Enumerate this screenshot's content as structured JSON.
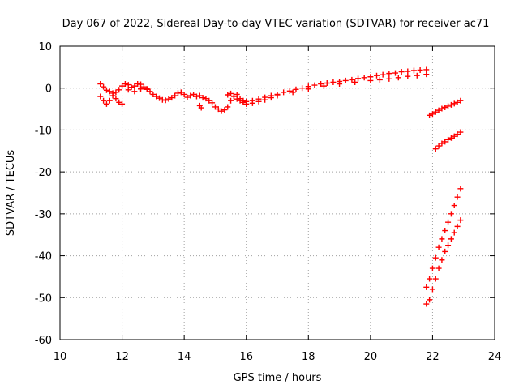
{
  "chart_data": {
    "type": "scatter",
    "title": "Day 067 of 2022, Sidereal Day-to-day VTEC variation (SDTVAR) for receiver ac71",
    "xlabel": "GPS time / hours",
    "ylabel": "SDTVAR / TECUs",
    "xlim": [
      10,
      24
    ],
    "ylim": [
      -60,
      10
    ],
    "xticks": [
      10,
      12,
      14,
      16,
      18,
      20,
      22,
      24
    ],
    "yticks": [
      10,
      0,
      -10,
      -20,
      -30,
      -40,
      -50,
      -60
    ],
    "grid": true,
    "marker": "+",
    "color": "#ff0000",
    "series": [
      {
        "x": [
          11.3,
          11.4,
          11.5,
          11.6,
          11.7,
          11.8,
          11.9,
          12.0,
          12.1,
          12.2,
          12.3,
          12.4,
          12.5,
          12.6,
          12.7,
          12.8,
          12.9,
          13.0,
          13.1,
          13.2,
          13.3,
          13.4,
          13.5,
          13.6,
          13.7,
          13.8,
          13.9,
          14.0,
          14.1,
          14.2,
          14.3,
          14.4,
          14.5,
          14.6,
          14.7,
          14.8,
          14.9,
          15.0,
          15.1,
          15.2,
          15.3,
          15.4,
          15.5,
          15.6,
          15.7,
          15.8,
          15.9,
          16.0,
          16.2,
          16.4,
          16.6,
          16.8,
          17.0,
          17.2,
          17.4,
          17.6,
          17.8,
          18.0,
          18.2,
          18.4,
          18.6,
          18.8,
          19.0,
          19.2,
          19.4,
          19.6,
          19.8,
          20.0,
          20.2,
          20.4,
          20.6,
          20.8,
          21.0,
          21.2,
          21.4,
          21.6,
          21.8
        ],
        "y": [
          1.0,
          0.3,
          -0.5,
          -0.8,
          -1.2,
          -1.0,
          -0.4,
          0.5,
          1.0,
          0.8,
          0.2,
          0.5,
          1.0,
          0.9,
          0.3,
          -0.2,
          -0.8,
          -1.5,
          -2.0,
          -2.4,
          -2.8,
          -2.9,
          -2.6,
          -2.3,
          -1.8,
          -1.2,
          -1.0,
          -1.5,
          -2.2,
          -1.8,
          -1.5,
          -2.0,
          -1.8,
          -2.3,
          -2.5,
          -3.0,
          -3.5,
          -4.5,
          -5.0,
          -5.5,
          -5.2,
          -4.5,
          -3.0,
          -2.0,
          -1.5,
          -2.5,
          -3.0,
          -3.2,
          -3.0,
          -2.6,
          -2.2,
          -1.8,
          -1.5,
          -1.0,
          -0.7,
          -0.3,
          0.0,
          0.4,
          0.7,
          1.0,
          1.2,
          1.4,
          1.6,
          1.8,
          2.0,
          2.3,
          2.5,
          2.7,
          3.0,
          3.2,
          3.5,
          3.6,
          3.9,
          4.0,
          4.2,
          4.3,
          4.4
        ]
      },
      {
        "x": [
          11.3,
          11.4,
          11.5,
          11.6,
          11.7,
          11.8,
          11.9,
          12.0,
          12.2,
          12.4,
          12.6,
          12.8,
          15.4,
          15.5,
          15.6,
          15.7,
          15.8,
          15.9,
          16.0,
          16.2,
          16.4,
          16.6,
          16.8,
          17.0,
          17.5,
          18.0,
          18.5,
          19.0,
          19.5,
          20.0,
          20.3,
          20.6,
          20.9,
          21.2,
          21.5,
          21.8
        ],
        "y": [
          -2.0,
          -3.0,
          -3.8,
          -3.0,
          -1.8,
          -2.5,
          -3.4,
          -3.8,
          -0.4,
          -0.8,
          -0.2,
          -0.3,
          -1.6,
          -1.3,
          -1.9,
          -2.6,
          -3.0,
          -3.4,
          -3.8,
          -3.6,
          -3.2,
          -2.8,
          -2.3,
          -1.8,
          -1.0,
          -0.2,
          0.5,
          1.0,
          1.4,
          1.8,
          2.0,
          2.2,
          2.5,
          2.8,
          3.0,
          3.3
        ]
      },
      {
        "x": [
          14.5,
          14.55
        ],
        "y": [
          -4.2,
          -4.7
        ]
      },
      {
        "x": [
          21.9,
          22.0,
          22.1,
          22.2,
          22.3,
          22.4,
          22.5,
          22.6,
          22.7,
          22.8,
          22.9
        ],
        "y": [
          -6.5,
          -6.2,
          -5.7,
          -5.3,
          -4.9,
          -4.6,
          -4.3,
          -4.0,
          -3.7,
          -3.4,
          -3.0
        ]
      },
      {
        "x": [
          22.1,
          22.2,
          22.3,
          22.4,
          22.5,
          22.6,
          22.7,
          22.8,
          22.9
        ],
        "y": [
          -14.5,
          -13.8,
          -13.2,
          -12.8,
          -12.3,
          -11.9,
          -11.5,
          -11.0,
          -10.5
        ]
      },
      {
        "x": [
          21.8,
          21.9,
          22.0,
          22.1,
          22.2,
          22.3,
          22.4,
          22.5,
          22.6,
          22.7,
          22.8,
          22.9
        ],
        "y": [
          -47.5,
          -45.5,
          -43.0,
          -40.5,
          -38.0,
          -36.0,
          -34.0,
          -32.0,
          -30.0,
          -28.0,
          -26.0,
          -24.0
        ]
      },
      {
        "x": [
          21.8,
          21.9,
          22.0,
          22.1,
          22.2,
          22.3,
          22.4,
          22.5,
          22.6,
          22.7,
          22.8,
          22.9
        ],
        "y": [
          -51.5,
          -50.5,
          -48.0,
          -45.5,
          -43.0,
          -41.0,
          -39.0,
          -37.5,
          -36.0,
          -34.5,
          -33.0,
          -31.5
        ]
      }
    ]
  }
}
